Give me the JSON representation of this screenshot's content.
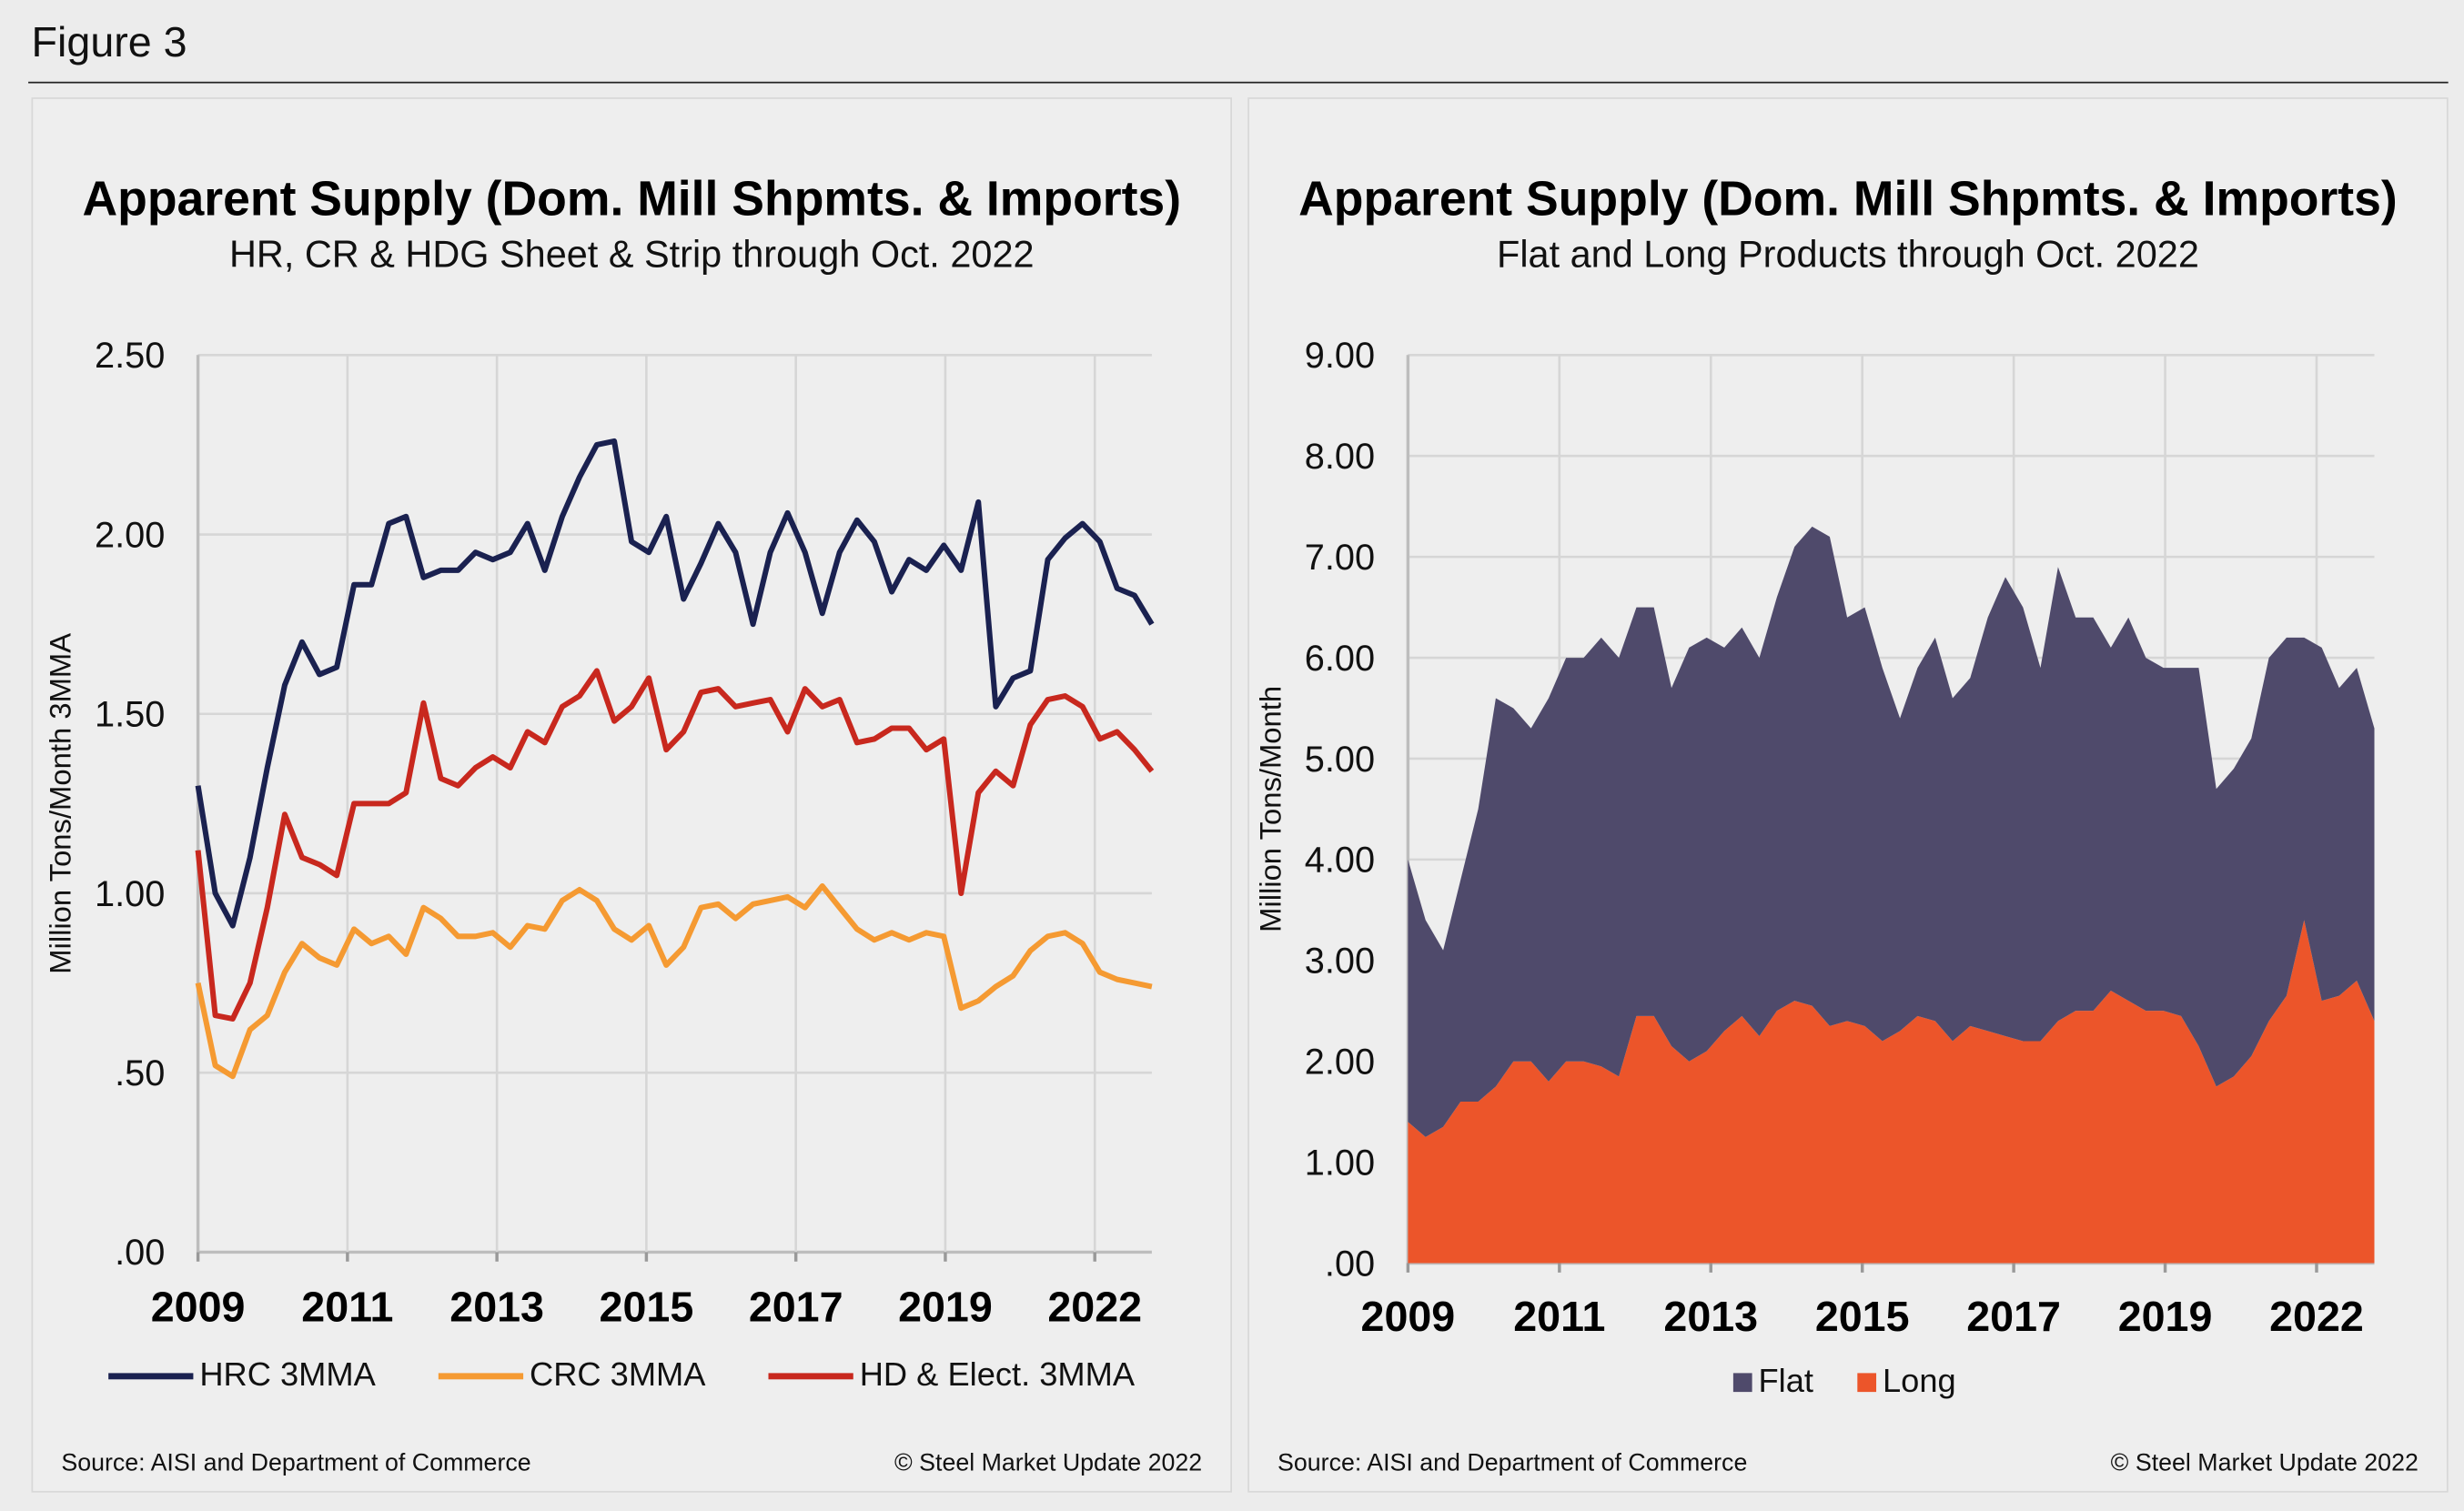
{
  "figure_label": "Figure 3",
  "chart_data": [
    {
      "type": "line",
      "title": "Apparent Supply (Dom. Mill Shpmts. & Imports)",
      "subtitle": "HR, CR & HDG Sheet & Strip through Oct. 2022",
      "ylabel": "Million Tons/Month 3MMA",
      "xlabel": "",
      "ylim": [
        0,
        2.5
      ],
      "yticks": [
        ".00",
        ".50",
        "1.00",
        "1.50",
        "2.00",
        "2.50"
      ],
      "xticks": [
        "2009",
        "2011",
        "2013",
        "2015",
        "2017",
        "2019",
        "2022"
      ],
      "grid": true,
      "legend": "bottom",
      "x": [
        "2009-01",
        "2009-04",
        "2009-07",
        "2009-10",
        "2010-01",
        "2010-04",
        "2010-07",
        "2010-10",
        "2011-01",
        "2011-04",
        "2011-07",
        "2011-10",
        "2012-01",
        "2012-04",
        "2012-07",
        "2012-10",
        "2013-01",
        "2013-04",
        "2013-07",
        "2013-10",
        "2014-01",
        "2014-04",
        "2014-07",
        "2014-10",
        "2015-01",
        "2015-04",
        "2015-07",
        "2015-10",
        "2016-01",
        "2016-04",
        "2016-07",
        "2016-10",
        "2017-01",
        "2017-04",
        "2017-07",
        "2017-10",
        "2018-01",
        "2018-04",
        "2018-07",
        "2018-10",
        "2019-01",
        "2019-04",
        "2019-07",
        "2019-10",
        "2020-01",
        "2020-04",
        "2020-07",
        "2020-10",
        "2021-01",
        "2021-04",
        "2021-07",
        "2021-10",
        "2022-01",
        "2022-04",
        "2022-07",
        "2022-10"
      ],
      "series": [
        {
          "name": "HRC 3MMA",
          "color": "#1a2150",
          "values": [
            1.3,
            1.0,
            0.91,
            1.1,
            1.35,
            1.58,
            1.7,
            1.61,
            1.63,
            1.86,
            1.86,
            2.03,
            2.05,
            1.88,
            1.9,
            1.9,
            1.95,
            1.93,
            1.95,
            2.03,
            1.9,
            2.05,
            2.16,
            2.25,
            2.26,
            1.98,
            1.95,
            2.05,
            1.82,
            1.92,
            2.03,
            1.95,
            1.75,
            1.95,
            2.06,
            1.95,
            1.78,
            1.95,
            2.04,
            1.98,
            1.84,
            1.93,
            1.9,
            1.97,
            1.9,
            2.09,
            1.52,
            1.6,
            1.62,
            1.93,
            1.99,
            2.03,
            1.98,
            1.85,
            1.83,
            1.75
          ]
        },
        {
          "name": "CRC 3MMA",
          "color": "#f59a32",
          "values": [
            0.75,
            0.52,
            0.49,
            0.62,
            0.66,
            0.78,
            0.86,
            0.82,
            0.8,
            0.9,
            0.86,
            0.88,
            0.83,
            0.96,
            0.93,
            0.88,
            0.88,
            0.89,
            0.85,
            0.91,
            0.9,
            0.98,
            1.01,
            0.98,
            0.9,
            0.87,
            0.91,
            0.8,
            0.85,
            0.96,
            0.97,
            0.93,
            0.97,
            0.98,
            0.99,
            0.96,
            1.02,
            0.96,
            0.9,
            0.87,
            0.89,
            0.87,
            0.89,
            0.88,
            0.68,
            0.7,
            0.74,
            0.77,
            0.84,
            0.88,
            0.89,
            0.86,
            0.78,
            0.76,
            0.75,
            0.74
          ]
        },
        {
          "name": "HD & Elect. 3MMA",
          "color": "#c8281e",
          "values": [
            1.12,
            0.66,
            0.65,
            0.75,
            0.96,
            1.22,
            1.1,
            1.08,
            1.05,
            1.25,
            1.25,
            1.25,
            1.28,
            1.53,
            1.32,
            1.3,
            1.35,
            1.38,
            1.35,
            1.45,
            1.42,
            1.52,
            1.55,
            1.62,
            1.48,
            1.52,
            1.6,
            1.4,
            1.45,
            1.56,
            1.57,
            1.52,
            1.53,
            1.54,
            1.45,
            1.57,
            1.52,
            1.54,
            1.42,
            1.43,
            1.46,
            1.46,
            1.4,
            1.43,
            1.0,
            1.28,
            1.34,
            1.3,
            1.47,
            1.54,
            1.55,
            1.52,
            1.43,
            1.45,
            1.4,
            1.34
          ]
        }
      ],
      "source": "Source: AISI and Department of Commerce",
      "copyright": "© Steel Market Update 2022"
    },
    {
      "type": "area",
      "stacked": true,
      "title": "Apparent Supply (Dom. Mill Shpmts. & Imports)",
      "subtitle": "Flat and Long Products through Oct. 2022",
      "ylabel": "Million Tons/Month",
      "xlabel": "",
      "ylim": [
        0,
        9
      ],
      "yticks": [
        ".00",
        "1.00",
        "2.00",
        "3.00",
        "4.00",
        "5.00",
        "6.00",
        "7.00",
        "8.00",
        "9.00"
      ],
      "xticks": [
        "2009",
        "2011",
        "2013",
        "2015",
        "2017",
        "2019",
        "2022"
      ],
      "grid": true,
      "legend": "bottom",
      "x": [
        "2009-01",
        "2009-04",
        "2009-07",
        "2009-10",
        "2010-01",
        "2010-04",
        "2010-07",
        "2010-10",
        "2011-01",
        "2011-04",
        "2011-07",
        "2011-10",
        "2012-01",
        "2012-04",
        "2012-07",
        "2012-10",
        "2013-01",
        "2013-04",
        "2013-07",
        "2013-10",
        "2014-01",
        "2014-04",
        "2014-07",
        "2014-10",
        "2015-01",
        "2015-04",
        "2015-07",
        "2015-10",
        "2016-01",
        "2016-04",
        "2016-07",
        "2016-10",
        "2017-01",
        "2017-04",
        "2017-07",
        "2017-10",
        "2018-01",
        "2018-04",
        "2018-07",
        "2018-10",
        "2019-01",
        "2019-04",
        "2019-07",
        "2019-10",
        "2020-01",
        "2020-04",
        "2020-07",
        "2020-10",
        "2021-01",
        "2021-04",
        "2021-07",
        "2021-10",
        "2022-01",
        "2022-04",
        "2022-07",
        "2022-10"
      ],
      "series": [
        {
          "name": "Long",
          "color": "#ec552a",
          "values": [
            1.4,
            1.25,
            1.35,
            1.6,
            1.6,
            1.75,
            2.0,
            2.0,
            1.8,
            2.0,
            2.0,
            1.95,
            1.85,
            2.45,
            2.45,
            2.15,
            2.0,
            2.1,
            2.3,
            2.45,
            2.25,
            2.5,
            2.6,
            2.55,
            2.35,
            2.4,
            2.35,
            2.2,
            2.3,
            2.45,
            2.4,
            2.2,
            2.35,
            2.3,
            2.25,
            2.2,
            2.2,
            2.4,
            2.5,
            2.5,
            2.7,
            2.6,
            2.5,
            2.5,
            2.45,
            2.15,
            1.75,
            1.85,
            2.05,
            2.4,
            2.65,
            3.4,
            2.6,
            2.65,
            2.8,
            2.4
          ]
        },
        {
          "name": "Flat",
          "color": "#4f4a6b",
          "values": [
            2.6,
            2.15,
            1.75,
            2.2,
            2.9,
            3.85,
            3.5,
            3.3,
            3.8,
            4.0,
            4.0,
            4.25,
            4.15,
            4.05,
            4.05,
            3.55,
            4.1,
            4.1,
            3.8,
            3.85,
            3.75,
            4.1,
            4.5,
            4.75,
            4.85,
            4.0,
            4.15,
            3.7,
            3.1,
            3.45,
            3.8,
            3.4,
            3.45,
            4.1,
            4.55,
            4.3,
            3.7,
            4.5,
            3.9,
            3.9,
            3.4,
            3.8,
            3.5,
            3.4,
            3.45,
            3.75,
            2.95,
            3.05,
            3.15,
            3.6,
            3.55,
            2.8,
            3.5,
            3.05,
            3.1,
            2.9
          ]
        }
      ],
      "legend_order": [
        "Flat",
        "Long"
      ],
      "source": "Source: AISI and Department of Commerce",
      "copyright": "© Steel Market Update 2022"
    }
  ]
}
